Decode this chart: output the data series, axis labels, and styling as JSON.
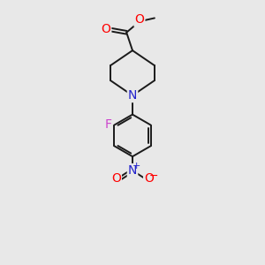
{
  "background_color": "#e8e8e8",
  "bond_color": "#1a1a1a",
  "bond_width": 1.4,
  "atom_colors": {
    "O": "#ff0000",
    "N_pip": "#2222cc",
    "N_nitro": "#2222cc",
    "F": "#cc44cc",
    "C": "#1a1a1a"
  },
  "xlim": [
    0,
    10
  ],
  "ylim": [
    0,
    13
  ],
  "figsize": [
    3.0,
    3.0
  ],
  "dpi": 100
}
